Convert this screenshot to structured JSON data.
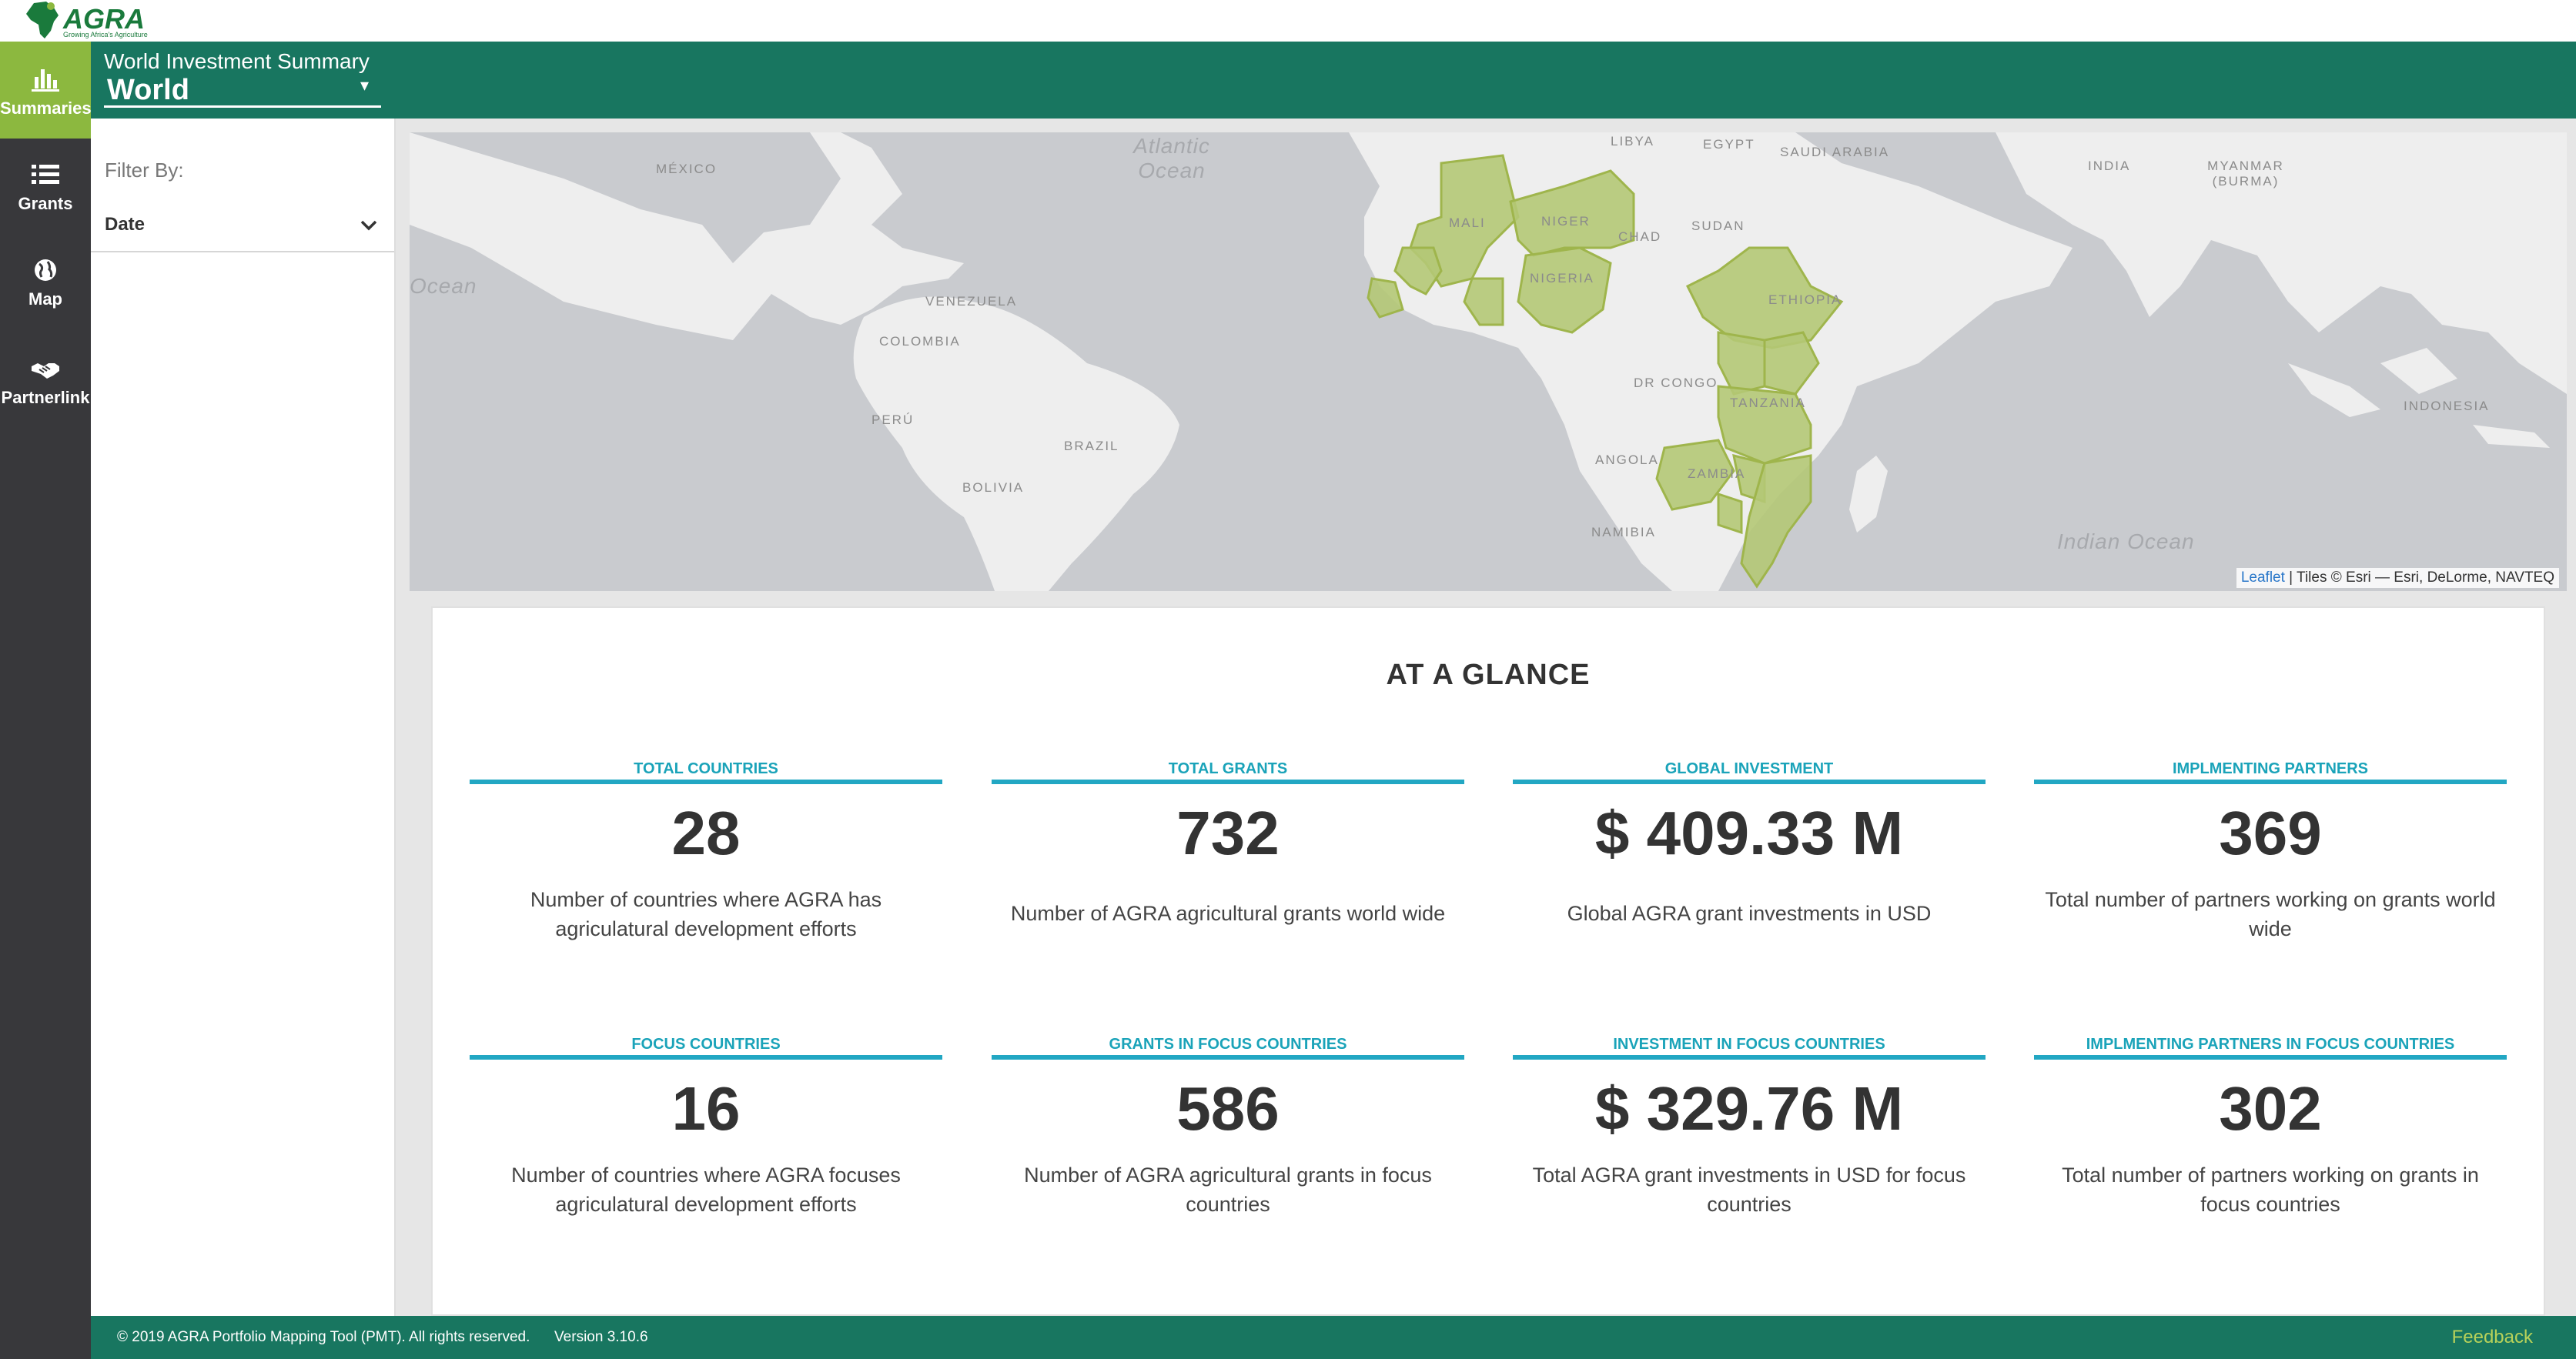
{
  "brand": {
    "name": "AGRA",
    "tagline": "Growing Africa's Agriculture"
  },
  "header": {
    "summary_title": "World Investment Summary",
    "selected_region": "World"
  },
  "nav": [
    {
      "label": "Summaries",
      "icon": "bar-chart-icon",
      "active": true
    },
    {
      "label": "Grants",
      "icon": "list-icon",
      "active": false
    },
    {
      "label": "Map",
      "icon": "globe-icon",
      "active": false
    },
    {
      "label": "Partnerlink",
      "icon": "handshake-icon",
      "active": false
    }
  ],
  "filter": {
    "heading": "Filter By:",
    "date_label": "Date"
  },
  "map": {
    "labels": [
      "MÉXICO",
      "VENEZUELA",
      "COLOMBIA",
      "PERÚ",
      "BRAZIL",
      "BOLIVIA",
      "MALI",
      "NIGER",
      "NIGERIA",
      "CHAD",
      "SUDAN",
      "LIBYA",
      "EGYPT",
      "SAUDI ARABIA",
      "ETHIOPIA",
      "DR CONGO",
      "TANZANIA",
      "ANGOLA",
      "ZAMBIA",
      "NAMIBIA",
      "INDIA",
      "MYANMAR (BURMA)",
      "INDONESIA"
    ],
    "oceans": [
      "Atlantic Ocean",
      "Ocean",
      "Indian Ocean"
    ],
    "attribution_link": "Leaflet",
    "attribution_text": " | Tiles © Esri — Esri, DeLorme, NAVTEQ",
    "highlight_color": "#b4c876"
  },
  "glance": {
    "title": "AT A GLANCE",
    "stats": [
      {
        "label": "TOTAL COUNTRIES",
        "value": "28",
        "desc": "Number of countries where AGRA has agriculatural development efforts"
      },
      {
        "label": "TOTAL GRANTS",
        "value": "732",
        "desc": "Number of AGRA agricultural grants world wide"
      },
      {
        "label": "GLOBAL INVESTMENT",
        "value": "$ 409.33 M",
        "desc": "Global AGRA grant investments in USD"
      },
      {
        "label": "IMPLMENTING PARTNERS",
        "value": "369",
        "desc": "Total number of partners working on grants world wide"
      },
      {
        "label": "FOCUS COUNTRIES",
        "value": "16",
        "desc": "Number of countries where AGRA focuses agriculatural development efforts"
      },
      {
        "label": "GRANTS IN FOCUS COUNTRIES",
        "value": "586",
        "desc": "Number of AGRA agricultural grants in focus countries"
      },
      {
        "label": "INVESTMENT IN FOCUS COUNTRIES",
        "value": "$ 329.76 M",
        "desc": "Total AGRA grant investments in USD for focus countries"
      },
      {
        "label": "IMPLMENTING PARTNERS IN FOCUS COUNTRIES",
        "value": "302",
        "desc": "Total number of partners working on grants in focus countries"
      }
    ]
  },
  "footer": {
    "copyright": "© 2019 AGRA Portfolio Mapping Tool (PMT). All rights reserved.      Version 3.10.6",
    "feedback": "Feedback"
  },
  "colors": {
    "primary_green": "#187660",
    "accent_green": "#8cb83f",
    "stat_teal": "#22a7c3",
    "nav_dark": "#38383b"
  }
}
